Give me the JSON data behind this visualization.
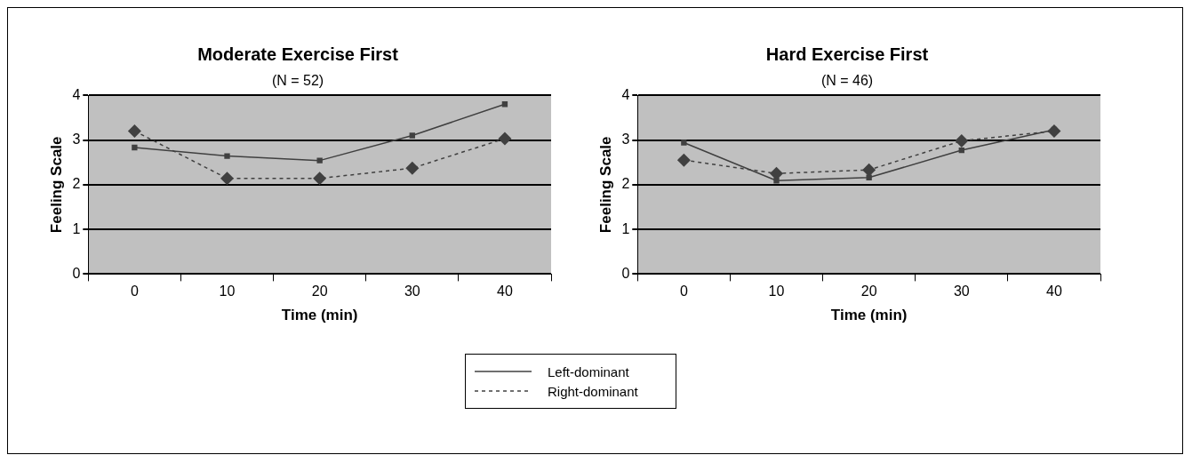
{
  "chart_data": [
    {
      "type": "line",
      "title": "Moderate Exercise First",
      "subtitle": "(N = 52)",
      "xlabel": "Time (min)",
      "ylabel": "Feeling Scale",
      "categories": [
        "0",
        "10",
        "20",
        "30",
        "40"
      ],
      "ylim": [
        0,
        4
      ],
      "yticks": [
        0,
        1,
        2,
        3,
        4
      ],
      "grid": "y",
      "legend": "bottom right",
      "series": [
        {
          "name": "Left-dominant",
          "color": "#404040",
          "marker": "square",
          "line_style": "solid",
          "values": [
            2.83,
            2.64,
            2.54,
            3.1,
            3.8
          ]
        },
        {
          "name": "Right-dominant",
          "color": "#404040",
          "marker": "diamond",
          "line_style": "dashed",
          "values": [
            3.2,
            2.14,
            2.14,
            2.37,
            3.03
          ]
        }
      ]
    },
    {
      "type": "line",
      "title": "Hard Exercise First",
      "subtitle": "(N = 46)",
      "xlabel": "Time (min)",
      "ylabel": "Feeling Scale",
      "categories": [
        "0",
        "10",
        "20",
        "30",
        "40"
      ],
      "ylim": [
        0,
        4
      ],
      "yticks": [
        0,
        1,
        2,
        3,
        4
      ],
      "grid": "y",
      "legend": "bottom left",
      "series": [
        {
          "name": "Left-dominant",
          "color": "#404040",
          "marker": "square",
          "line_style": "solid",
          "values": [
            2.94,
            2.09,
            2.16,
            2.77,
            3.23
          ]
        },
        {
          "name": "Right-dominant",
          "color": "#404040",
          "marker": "diamond",
          "line_style": "dashed",
          "values": [
            2.55,
            2.25,
            2.33,
            2.98,
            3.2
          ]
        }
      ]
    }
  ]
}
